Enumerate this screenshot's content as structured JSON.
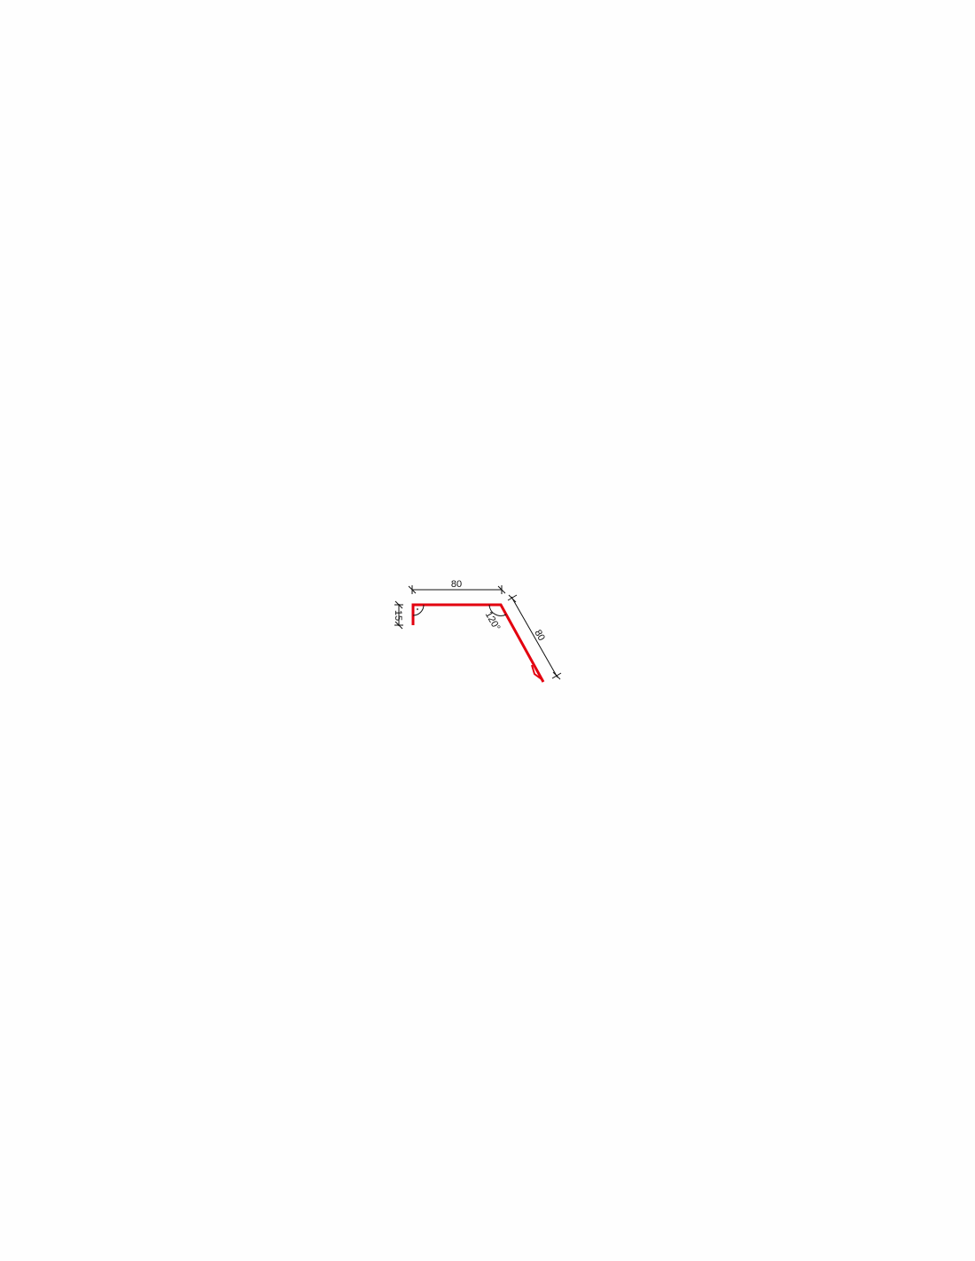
{
  "drawing": {
    "profile_color": "#e3000f",
    "dimension_color": "#111111",
    "dimensions": {
      "top_length": "80",
      "left_height": "15",
      "diagonal_length": "80",
      "bend_angle": "120°"
    }
  }
}
